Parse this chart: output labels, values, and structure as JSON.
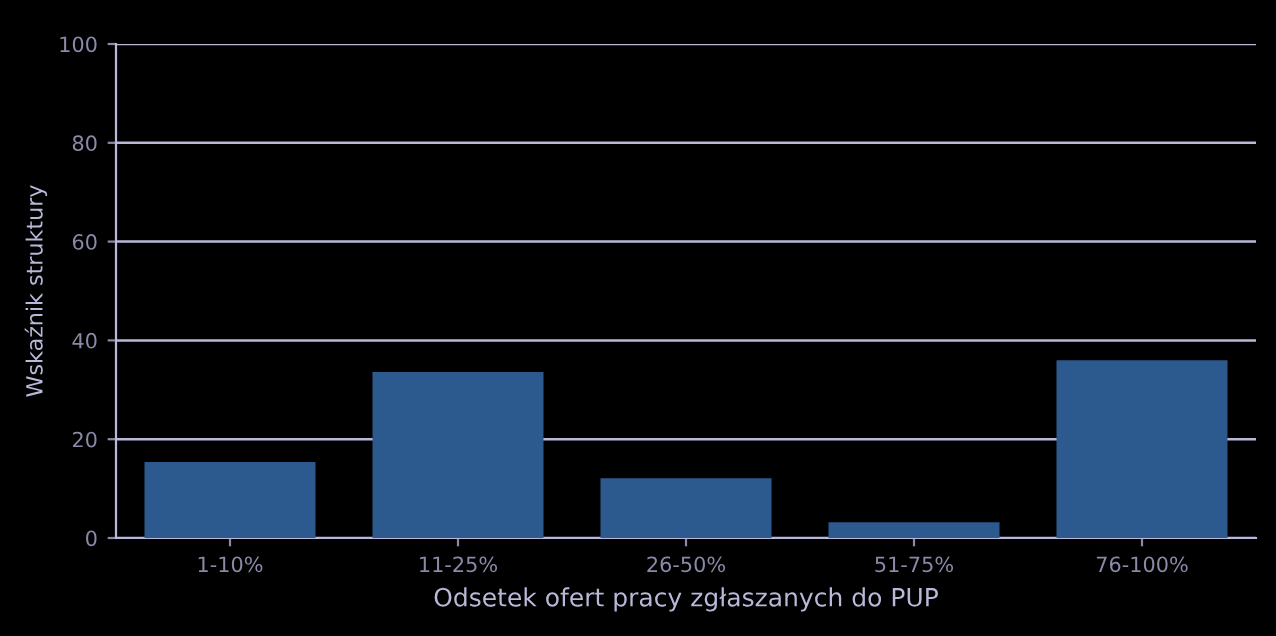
{
  "chart_data": {
    "type": "bar",
    "categories": [
      "1-10%",
      "11-25%",
      "26-50%",
      "51-75%",
      "76-100%"
    ],
    "values": [
      15.4,
      33.6,
      12.1,
      3.2,
      36.0
    ],
    "color": "#2c5a8e",
    "xlabel": "Odsetek ofert pracy zgłaszanych do PUP",
    "ylabel": "Wskaźnik struktury",
    "ylim": [
      0,
      100
    ],
    "yticks": [
      0,
      20,
      40,
      60,
      80,
      100
    ],
    "grid": "y"
  }
}
